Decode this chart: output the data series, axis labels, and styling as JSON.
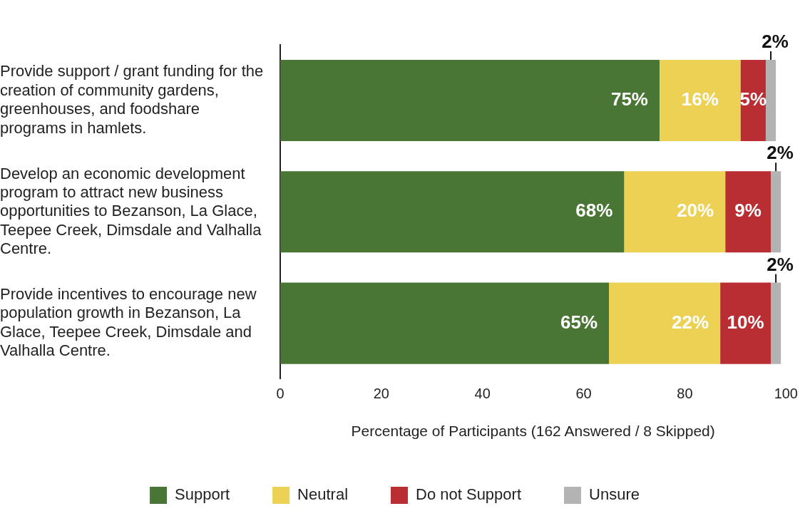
{
  "chart_data": {
    "type": "bar",
    "orientation": "horizontal",
    "stacked": true,
    "categories": [
      "Provide support / grant funding for the creation of community gardens, greenhouses, and foodshare programs in hamlets.",
      "Develop an economic development program to attract new business opportunities to Bezanson, La Glace, Teepee Creek, Dimsdale and Valhalla Centre.",
      "Provide incentives to encourage new population growth in Bezanson, La Glace, Teepee Creek, Dimsdale and Valhalla Centre."
    ],
    "series": [
      {
        "name": "Support",
        "color": "#4a7635",
        "values": [
          75,
          68,
          65
        ],
        "value_labels": [
          "75%",
          "68%",
          "65%"
        ]
      },
      {
        "name": "Neutral",
        "color": "#ecd155",
        "values": [
          16,
          20,
          22
        ],
        "value_labels": [
          "16%",
          "20%",
          "22%"
        ]
      },
      {
        "name": "Do not Support",
        "color": "#b82e33",
        "values": [
          5,
          9,
          10
        ],
        "value_labels": [
          "5%",
          "9%",
          "10%"
        ]
      },
      {
        "name": "Unsure",
        "color": "#b3b3b3",
        "values": [
          2,
          2,
          2
        ],
        "value_labels": [
          "2%",
          "2%",
          "2%"
        ]
      }
    ],
    "xlim": [
      0,
      100
    ],
    "xticks": [
      0,
      20,
      40,
      60,
      80,
      100
    ],
    "xlabel": "Percentage of Participants (162 Answered / 8 Skipped)",
    "grid": false,
    "legend": "bottom"
  }
}
